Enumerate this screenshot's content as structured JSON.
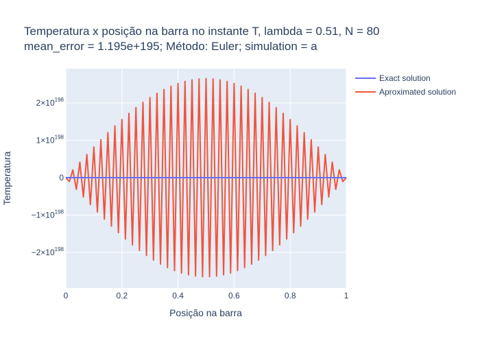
{
  "chart_data": {
    "type": "line",
    "title_line1": "Temperatura x posição na barra no instante T, lambda = 0.51, N = 80",
    "title_line2": "mean_error = 1.195e+195; Método: Euler; simulation = a",
    "xlabel": "Posição na barra",
    "ylabel": "Temperatura",
    "xlim": [
      0,
      1
    ],
    "ylim": [
      -2.95e+198,
      2.95e+198
    ],
    "x_ticks": [
      {
        "v": 0,
        "label": "0"
      },
      {
        "v": 0.2,
        "label": "0.2"
      },
      {
        "v": 0.4,
        "label": "0.4"
      },
      {
        "v": 0.6,
        "label": "0.6"
      },
      {
        "v": 0.8,
        "label": "0.8"
      },
      {
        "v": 1,
        "label": "1"
      }
    ],
    "y_ticks": [
      {
        "v": 2e+198,
        "mant": "2",
        "sign": "",
        "exp": "198"
      },
      {
        "v": 1e+198,
        "mant": "1",
        "sign": "",
        "exp": "198"
      },
      {
        "v": 0,
        "mant": "0",
        "sign": "",
        "exp": ""
      },
      {
        "v": -1e+198,
        "mant": "1",
        "sign": "−",
        "exp": "198"
      },
      {
        "v": -2e+198,
        "mant": "2",
        "sign": "−",
        "exp": "198"
      }
    ],
    "n_points": 81,
    "envelope_amplitude": 2.65e+198,
    "series": [
      {
        "name": "Exact solution",
        "color": "#636efa",
        "y": "≈0 across the bar"
      },
      {
        "name": "Aproximated solution",
        "color": "#ef553b",
        "y": "alternating sign, sin(πx) envelope, peak ≈2.65e198 at x≈0.5"
      }
    ],
    "grid": true,
    "legend_position": "right",
    "plot_bgcolor": "#e5ecf6"
  }
}
